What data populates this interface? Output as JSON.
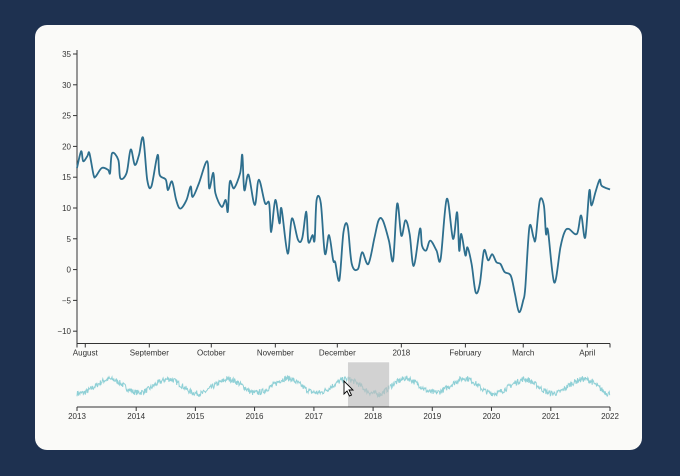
{
  "colors": {
    "background": "#1e3150",
    "card": "#fafaf8",
    "main_line": "#2e6f8e",
    "overview_line": "#8fd0d6",
    "brush": "#c8c8c8"
  },
  "chart_data": [
    {
      "type": "line",
      "title": "",
      "xlabel": "",
      "ylabel": "",
      "ylim": [
        -12,
        35
      ],
      "xlim": [
        "2017-07-28",
        "2018-04-12"
      ],
      "grid": false,
      "y_ticks": [
        "35",
        "30",
        "25",
        "20",
        "15",
        "10",
        "5",
        "0",
        "−5",
        "−10"
      ],
      "y_tick_values": [
        35,
        30,
        25,
        20,
        15,
        10,
        5,
        0,
        -5,
        -10
      ],
      "x_ticks": [
        {
          "label": "August",
          "date": "2017-08-01"
        },
        {
          "label": "September",
          "date": "2017-09-01"
        },
        {
          "label": "October",
          "date": "2017-10-01"
        },
        {
          "label": "November",
          "date": "2017-11-01"
        },
        {
          "label": "December",
          "date": "2017-12-01"
        },
        {
          "label": "2018",
          "date": "2018-01-01"
        },
        {
          "label": "February",
          "date": "2018-02-01"
        },
        {
          "label": "March",
          "date": "2018-03-01"
        },
        {
          "label": "April",
          "date": "2018-04-01"
        }
      ],
      "points": [
        [
          "2017-07-28",
          16.5
        ],
        [
          "2017-07-30",
          19.2
        ],
        [
          "2017-07-31",
          17.6
        ],
        [
          "2017-08-02",
          18.4
        ],
        [
          "2017-08-03",
          18.9
        ],
        [
          "2017-08-05",
          15.4
        ],
        [
          "2017-08-06",
          15.1
        ],
        [
          "2017-08-09",
          16.5
        ],
        [
          "2017-08-12",
          16.2
        ],
        [
          "2017-08-13",
          15.7
        ],
        [
          "2017-08-14",
          18.9
        ],
        [
          "2017-08-17",
          17.8
        ],
        [
          "2017-08-18",
          14.8
        ],
        [
          "2017-08-21",
          15.7
        ],
        [
          "2017-08-23",
          19.5
        ],
        [
          "2017-08-25",
          17.0
        ],
        [
          "2017-08-27",
          18.6
        ],
        [
          "2017-08-29",
          21.4
        ],
        [
          "2017-08-31",
          14.6
        ],
        [
          "2017-09-02",
          13.5
        ],
        [
          "2017-09-05",
          18.6
        ],
        [
          "2017-09-06",
          15.4
        ],
        [
          "2017-09-09",
          14.6
        ],
        [
          "2017-09-10",
          12.9
        ],
        [
          "2017-09-12",
          14.3
        ],
        [
          "2017-09-14",
          11.3
        ],
        [
          "2017-09-16",
          9.9
        ],
        [
          "2017-09-19",
          11.3
        ],
        [
          "2017-09-21",
          13.5
        ],
        [
          "2017-09-22",
          11.8
        ],
        [
          "2017-09-25",
          14.0
        ],
        [
          "2017-09-29",
          17.6
        ],
        [
          "2017-09-30",
          13.2
        ],
        [
          "2017-10-02",
          15.7
        ],
        [
          "2017-10-03",
          12.4
        ],
        [
          "2017-10-06",
          10.2
        ],
        [
          "2017-10-08",
          11.3
        ],
        [
          "2017-10-09",
          9.4
        ],
        [
          "2017-10-10",
          14.3
        ],
        [
          "2017-10-12",
          13.2
        ],
        [
          "2017-10-15",
          15.7
        ],
        [
          "2017-10-16",
          18.6
        ],
        [
          "2017-10-17",
          12.9
        ],
        [
          "2017-10-19",
          15.4
        ],
        [
          "2017-10-22",
          10.5
        ],
        [
          "2017-10-24",
          14.6
        ],
        [
          "2017-10-27",
          10.8
        ],
        [
          "2017-10-29",
          10.8
        ],
        [
          "2017-10-30",
          6.1
        ],
        [
          "2017-11-01",
          11.3
        ],
        [
          "2017-11-03",
          7.5
        ],
        [
          "2017-11-04",
          9.9
        ],
        [
          "2017-11-07",
          2.6
        ],
        [
          "2017-11-09",
          8.3
        ],
        [
          "2017-11-12",
          4.8
        ],
        [
          "2017-11-14",
          5.1
        ],
        [
          "2017-11-16",
          9.4
        ],
        [
          "2017-11-17",
          4.5
        ],
        [
          "2017-11-19",
          5.6
        ],
        [
          "2017-11-20",
          4.8
        ],
        [
          "2017-11-21",
          11.3
        ],
        [
          "2017-11-23",
          10.8
        ],
        [
          "2017-11-25",
          2.6
        ],
        [
          "2017-11-27",
          5.6
        ],
        [
          "2017-11-29",
          1.5
        ],
        [
          "2017-11-30",
          1.2
        ],
        [
          "2017-12-02",
          -1.7
        ],
        [
          "2017-12-04",
          6.1
        ],
        [
          "2017-12-06",
          7.1
        ],
        [
          "2017-12-08",
          0.9
        ],
        [
          "2017-12-11",
          0.1
        ],
        [
          "2017-12-13",
          2.8
        ],
        [
          "2017-12-16",
          0.9
        ],
        [
          "2017-12-19",
          5.2
        ],
        [
          "2017-12-21",
          8.0
        ],
        [
          "2017-12-23",
          8.0
        ],
        [
          "2017-12-26",
          4.7
        ],
        [
          "2017-12-28",
          1.5
        ],
        [
          "2017-12-30",
          10.7
        ],
        [
          "2018-01-01",
          5.5
        ],
        [
          "2018-01-03",
          8.0
        ],
        [
          "2018-01-05",
          5.8
        ],
        [
          "2018-01-07",
          0.6
        ],
        [
          "2018-01-10",
          6.6
        ],
        [
          "2018-01-11",
          3.9
        ],
        [
          "2018-01-13",
          3.1
        ],
        [
          "2018-01-15",
          4.7
        ],
        [
          "2018-01-18",
          3.1
        ],
        [
          "2018-01-20",
          1.7
        ],
        [
          "2018-01-23",
          11.5
        ],
        [
          "2018-01-26",
          5.0
        ],
        [
          "2018-01-28",
          9.3
        ],
        [
          "2018-01-29",
          3.1
        ],
        [
          "2018-01-30",
          5.8
        ],
        [
          "2018-02-01",
          2.3
        ],
        [
          "2018-02-02",
          3.6
        ],
        [
          "2018-02-04",
          0.9
        ],
        [
          "2018-02-06",
          -3.7
        ],
        [
          "2018-02-08",
          -2.3
        ],
        [
          "2018-02-10",
          3.1
        ],
        [
          "2018-02-12",
          1.5
        ],
        [
          "2018-02-14",
          2.5
        ],
        [
          "2018-02-16",
          1.2
        ],
        [
          "2018-02-18",
          0.9
        ],
        [
          "2018-02-20",
          -0.4
        ],
        [
          "2018-02-23",
          -1.0
        ],
        [
          "2018-02-25",
          -4.0
        ],
        [
          "2018-02-27",
          -6.9
        ],
        [
          "2018-03-01",
          -5.0
        ],
        [
          "2018-03-02",
          -2.9
        ],
        [
          "2018-03-04",
          6.9
        ],
        [
          "2018-03-06",
          5.2
        ],
        [
          "2018-03-07",
          5.0
        ],
        [
          "2018-03-09",
          11.2
        ],
        [
          "2018-03-11",
          10.4
        ],
        [
          "2018-03-12",
          5.8
        ],
        [
          "2018-03-13",
          6.3
        ],
        [
          "2018-03-16",
          -2.1
        ],
        [
          "2018-03-19",
          3.6
        ],
        [
          "2018-03-21",
          6.1
        ],
        [
          "2018-03-23",
          6.6
        ],
        [
          "2018-03-27",
          5.8
        ],
        [
          "2018-03-29",
          8.8
        ],
        [
          "2018-03-31",
          5.2
        ],
        [
          "2018-04-02",
          12.8
        ],
        [
          "2018-04-03",
          10.4
        ],
        [
          "2018-04-05",
          12.6
        ],
        [
          "2018-04-07",
          14.6
        ],
        [
          "2018-04-08",
          13.6
        ],
        [
          "2018-04-12",
          13.0
        ]
      ]
    },
    {
      "type": "line",
      "title": "",
      "xlim": [
        "2013-01-01",
        "2022-01-01"
      ],
      "ylim": [
        -12,
        35
      ],
      "x_ticks": [
        "2013",
        "2014",
        "2015",
        "2016",
        "2017",
        "2018",
        "2019",
        "2020",
        "2021",
        "2022"
      ],
      "brush_selection": [
        "2017-07-28",
        "2018-04-12"
      ],
      "monthly_start": "2013-01",
      "monthly_values": [
        1,
        2,
        5,
        9,
        13,
        17,
        19,
        18,
        15,
        11,
        6,
        3,
        2,
        3,
        6,
        10,
        14,
        17,
        19,
        18,
        14,
        10,
        5,
        2,
        1,
        1,
        5,
        9,
        13,
        16,
        19,
        18,
        15,
        11,
        6,
        2,
        2,
        3,
        6,
        10,
        14,
        18,
        20,
        19,
        15,
        11,
        6,
        3,
        2,
        2,
        5,
        9,
        13,
        17,
        19,
        18,
        15,
        11,
        5,
        2,
        1,
        0,
        4,
        9,
        14,
        17,
        20,
        19,
        15,
        11,
        6,
        3,
        2,
        3,
        6,
        10,
        14,
        18,
        20,
        19,
        15,
        10,
        5,
        2,
        1,
        2,
        5,
        9,
        13,
        16,
        19,
        18,
        14,
        10,
        5,
        2,
        1,
        2,
        5,
        10,
        14,
        17,
        19,
        18,
        15,
        10,
        5,
        1
      ]
    }
  ]
}
